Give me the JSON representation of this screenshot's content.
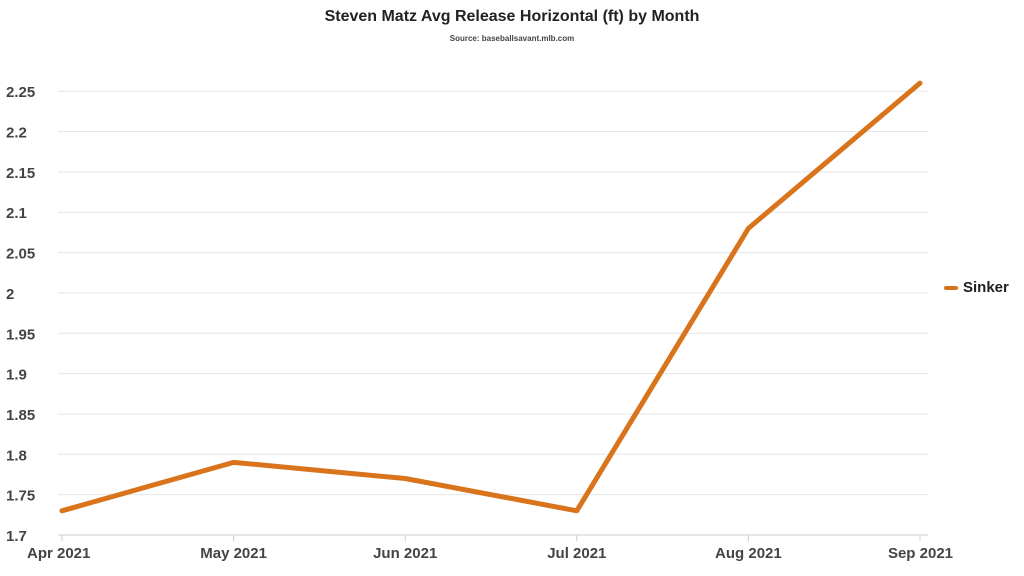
{
  "title": "Steven Matz Avg Release Horizontal (ft) by Month",
  "subtitle": "Source: baseballsavant.mlb.com",
  "chart_data": {
    "type": "line",
    "title": "Steven Matz Avg Release Horizontal (ft) by Month",
    "subtitle": "Source: baseballsavant.mlb.com",
    "xlabel": "",
    "ylabel": "",
    "categories": [
      "Apr 2021",
      "May 2021",
      "Jun 2021",
      "Jul 2021",
      "Aug 2021",
      "Sep 2021"
    ],
    "series": [
      {
        "name": "Sinker",
        "color": "#d9731c",
        "values": [
          1.73,
          1.79,
          1.77,
          1.73,
          2.08,
          2.26
        ]
      }
    ],
    "ylim": [
      1.7,
      2.28
    ],
    "yticks": [
      "1.7",
      "1.75",
      "1.8",
      "1.85",
      "1.9",
      "1.95",
      "2",
      "2.05",
      "2.1",
      "2.15",
      "2.2",
      "2.25"
    ],
    "grid": true,
    "legend_position": "right"
  }
}
